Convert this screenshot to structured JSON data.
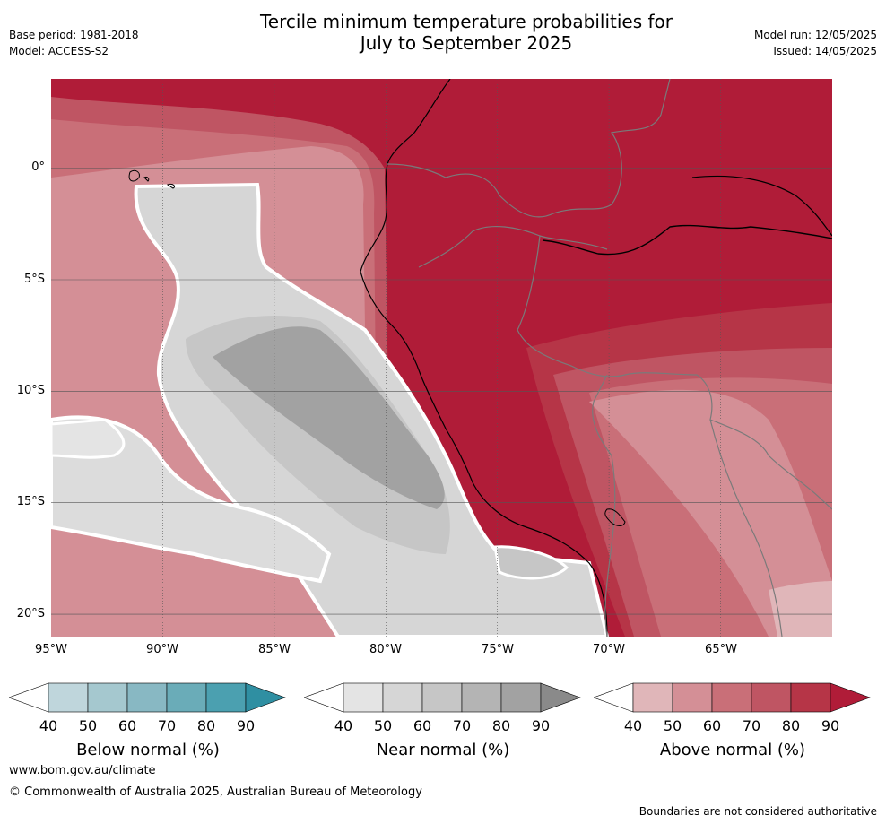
{
  "header": {
    "title_line1": "Tercile minimum temperature probabilities for",
    "title_line2": "July to September 2025",
    "base_period": "Base period: 1981-2018",
    "model": "Model: ACCESS-S2",
    "model_run": "Model run: 12/05/2025",
    "issued": "Issued: 14/05/2025"
  },
  "map": {
    "lat_labels": [
      "0°",
      "5°S",
      "10°S",
      "15°S",
      "20°S"
    ],
    "lon_labels": [
      "95°W",
      "90°W",
      "85°W",
      "80°W",
      "75°W",
      "70°W",
      "65°W"
    ],
    "extent": {
      "lon_min": -95,
      "lon_max": -60,
      "lat_min": -21,
      "lat_max": 4
    }
  },
  "colorbars": [
    {
      "title": "Below normal (%)",
      "ticks": [
        "40",
        "50",
        "60",
        "70",
        "80",
        "90"
      ],
      "colors": [
        "#ffffff",
        "#bfd6dc",
        "#a5c8cf",
        "#88b8c3",
        "#6aacb8",
        "#4ba0b0",
        "#2f8fa2"
      ]
    },
    {
      "title": "Near normal (%)",
      "ticks": [
        "40",
        "50",
        "60",
        "70",
        "80",
        "90"
      ],
      "colors": [
        "#ffffff",
        "#e4e4e4",
        "#d6d6d6",
        "#c6c6c6",
        "#b4b4b4",
        "#a2a2a2",
        "#8a8a8a"
      ]
    },
    {
      "title": "Above normal (%)",
      "ticks": [
        "40",
        "50",
        "60",
        "70",
        "80",
        "90"
      ],
      "colors": [
        "#ffffff",
        "#e0b6b9",
        "#d48f96",
        "#c96f78",
        "#bf5563",
        "#b63547",
        "#b01c38"
      ]
    }
  ],
  "footer": {
    "website": "www.bom.gov.au/climate",
    "copyright": "© Commonwealth of Australia 2025, Australian Bureau of Meteorology",
    "disclaimer": "Boundaries are not considered authoritative"
  }
}
